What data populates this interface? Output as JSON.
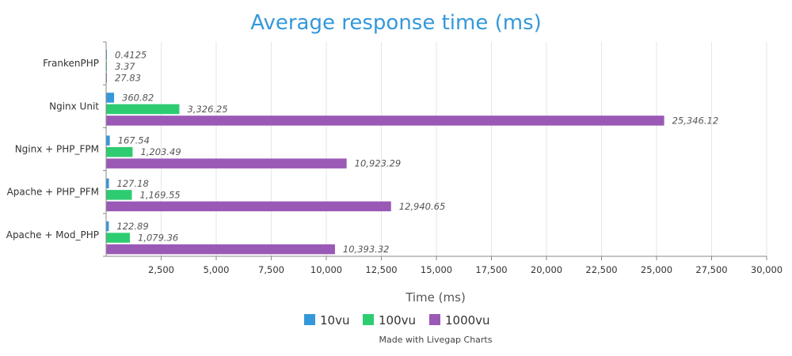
{
  "chart_data": {
    "type": "bar",
    "orientation": "horizontal",
    "title": "Average response time (ms)",
    "xlabel": "Time (ms)",
    "ylabel": "",
    "categories": [
      "FrankenPHP",
      "Nginx Unit",
      "Nginx + PHP_FPM",
      "Apache + PHP_PFM",
      "Apache + Mod_PHP"
    ],
    "series": [
      {
        "name": "10vu",
        "color": "#3498db",
        "values": [
          0.4125,
          360.82,
          167.54,
          127.18,
          122.89
        ],
        "labels": [
          "0.4125",
          "360.82",
          "167.54",
          "127.18",
          "122.89"
        ]
      },
      {
        "name": "100vu",
        "color": "#2ecc71",
        "values": [
          3.37,
          3326.25,
          1203.49,
          1169.55,
          1079.36
        ],
        "labels": [
          "3.37",
          "3,326.25",
          "1,203.49",
          "1,169.55",
          "1,079.36"
        ]
      },
      {
        "name": "1000vu",
        "color": "#9b59b6",
        "values": [
          27.83,
          25346.12,
          10923.29,
          12940.65,
          10393.32
        ],
        "labels": [
          "27.83",
          "25,346.12",
          "10,923.29",
          "12,940.65",
          "10,393.32"
        ]
      }
    ],
    "xlim": [
      0,
      30000
    ],
    "xticks": [
      2500,
      5000,
      7500,
      10000,
      12500,
      15000,
      17500,
      20000,
      22500,
      25000,
      27500,
      30000
    ],
    "xtick_labels": [
      "2,500",
      "5,000",
      "7,500",
      "10,000",
      "12,500",
      "15,000",
      "17,500",
      "20,000",
      "22,500",
      "25,000",
      "27,500",
      "30,000"
    ],
    "grid": true,
    "legend": "bottom-center",
    "credit": "Made with Livegap Charts",
    "title_color": "#3498db",
    "grid_color": "#e6e6e6",
    "axis_color": "#888888"
  }
}
